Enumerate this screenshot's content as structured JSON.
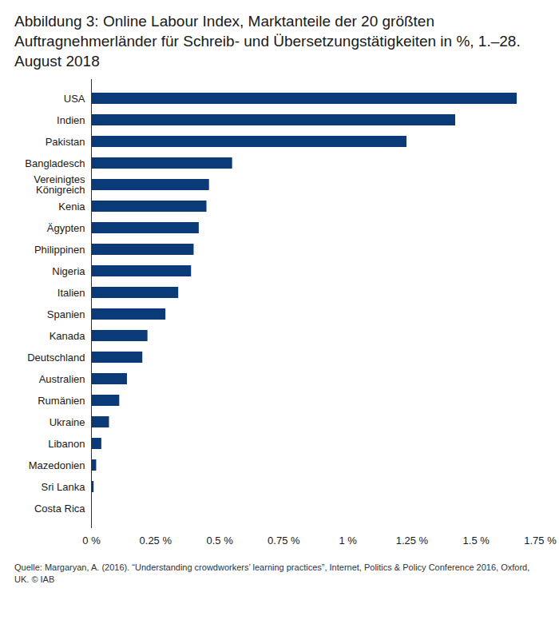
{
  "chart_data": {
    "type": "bar",
    "orientation": "horizontal",
    "title": "Abbildung 3: Online Labour Index, Marktanteile der 20 größten Auftragnehmerländer für Schreib- und Übersetzungstätigkeiten in %, 1.–28. August 2018",
    "caption": "Quelle: Margaryan, A. (2016). “Understanding crowdworkers’ learning practices”, Internet, Politics & Policy Conference 2016, Oxford, UK. © IAB",
    "categories": [
      "USA",
      "Indien",
      "Pakistan",
      "Bangladesch",
      "Vereinigtes Königreich",
      "Kenia",
      "Ägypten",
      "Philippinen",
      "Nigeria",
      "Italien",
      "Spanien",
      "Kanada",
      "Deutschland",
      "Australien",
      "Rumänien",
      "Ukraine",
      "Libanon",
      "Mazedonien",
      "Sri Lanka",
      "Costa Rica"
    ],
    "values": [
      1.66,
      1.42,
      1.23,
      0.55,
      0.46,
      0.45,
      0.42,
      0.4,
      0.39,
      0.34,
      0.29,
      0.22,
      0.2,
      0.14,
      0.11,
      0.07,
      0.04,
      0.02,
      0.01,
      0
    ],
    "color": "#0b3a78",
    "xlim": [
      0,
      1.75
    ],
    "xticks": [
      {
        "value": 0,
        "label": "0 %"
      },
      {
        "value": 0.25,
        "label": "0.25 %"
      },
      {
        "value": 0.5,
        "label": "0.5 %"
      },
      {
        "value": 0.75,
        "label": "0.75 %"
      },
      {
        "value": 1,
        "label": "1 %"
      },
      {
        "value": 1.25,
        "label": "1.25 %"
      },
      {
        "value": 1.5,
        "label": "1.5 %"
      },
      {
        "value": 1.75,
        "label": "1.75 %"
      }
    ],
    "grid": false
  }
}
